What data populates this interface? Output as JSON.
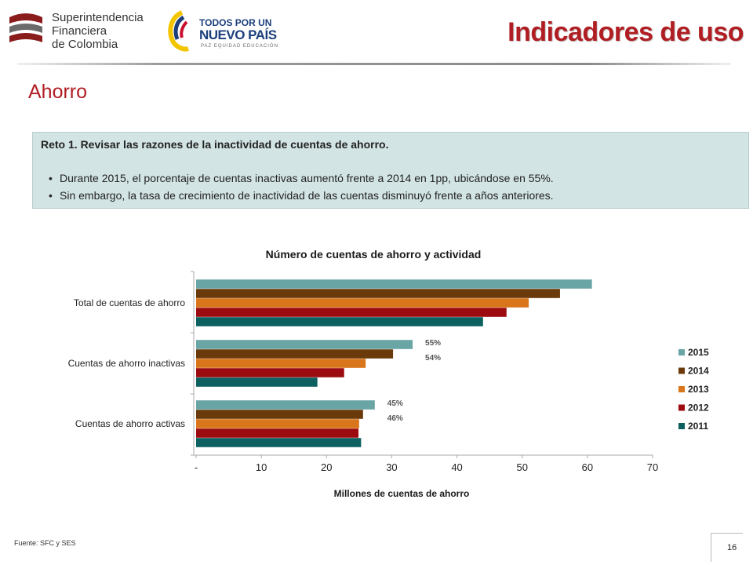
{
  "header": {
    "logo_sfc": {
      "lines": [
        "Superintendencia",
        "Financiera",
        "de Colombia"
      ]
    },
    "logo_gov": {
      "line1": "TODOS POR UN",
      "line2": "NUEVO PAÍS",
      "tagline": "PAZ  EQUIDAD  EDUCACIÓN"
    },
    "title": "Indicadores de uso"
  },
  "section_title": "Ahorro",
  "challenge": {
    "title": "Reto 1. Revisar las razones de la inactividad de cuentas de ahorro.",
    "bullets": [
      "Durante 2015, el porcentaje de cuentas inactivas aumentó frente a 2014 en 1pp, ubicándose en 55%.",
      "Sin embargo, la tasa de crecimiento de inactividad de las cuentas disminuyó frente a años anteriores."
    ],
    "bullet_symbol": "•"
  },
  "chart_data": {
    "type": "bar",
    "orientation": "horizontal",
    "title": "Número de cuentas de ahorro y actividad",
    "xlabel": "Millones de cuentas de ahorro",
    "ylabel": "",
    "xlim": [
      0,
      70
    ],
    "xticks": [
      "-",
      "10",
      "20",
      "30",
      "40",
      "50",
      "60",
      "70"
    ],
    "categories": [
      "Total de cuentas de ahorro",
      "Cuentas de ahorro inactivas",
      "Cuentas de ahorro activas"
    ],
    "series": [
      {
        "name": "2015",
        "color": "#6aa5a5",
        "values": [
          60.7,
          33.2,
          27.4
        ]
      },
      {
        "name": "2014",
        "color": "#6b3a0a",
        "values": [
          55.8,
          30.2,
          25.6
        ]
      },
      {
        "name": "2013",
        "color": "#d9761c",
        "values": [
          51.0,
          26.0,
          25.0
        ]
      },
      {
        "name": "2012",
        "color": "#9c0b10",
        "values": [
          47.6,
          22.7,
          24.9
        ]
      },
      {
        "name": "2011",
        "color": "#0d6060",
        "values": [
          44.0,
          18.6,
          25.3
        ]
      }
    ],
    "annotations": [
      {
        "text": "55%",
        "category": "Cuentas de ahorro inactivas",
        "series": "2015"
      },
      {
        "text": "54%",
        "category": "Cuentas de ahorro inactivas",
        "series": "2014"
      },
      {
        "text": "45%",
        "category": "Cuentas de ahorro activas",
        "series": "2015"
      },
      {
        "text": "46%",
        "category": "Cuentas de ahorro activas",
        "series": "2014"
      }
    ],
    "legend_position": "right",
    "grid": false
  },
  "footer": {
    "source": "Fuente: SFC y SES",
    "page_number": "16"
  },
  "colors": {
    "brand_red": "#b01e23",
    "box_bg": "#d3e4e4",
    "gov_blue": "#1c3f7c"
  }
}
